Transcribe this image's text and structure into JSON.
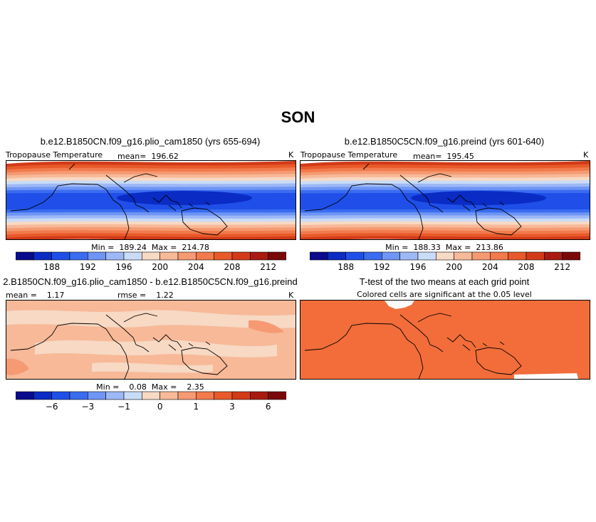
{
  "figure": {
    "title": "SON"
  },
  "colorbar_colors": [
    "#0a0a8c",
    "#0a2bc4",
    "#1f4fe8",
    "#3a6cf0",
    "#6f95f5",
    "#9db8f5",
    "#c9dcf7",
    "#f7d9c4",
    "#f7b998",
    "#f59a72",
    "#f27a4c",
    "#e85a2a",
    "#d33a18",
    "#a81a10",
    "#7a0808"
  ],
  "panels": [
    {
      "title": "b.e12.B1850CN.f09_g16.plio_cam1850 (yrs 655-694)",
      "variable_label": "Tropopause Temperature",
      "mean_label": "mean=  196.62",
      "units": "K",
      "minmax": "Min =  189.24  Max =  214.78",
      "colorbar_ticks": [
        "188",
        "192",
        "196",
        "200",
        "204",
        "208",
        "212"
      ]
    },
    {
      "title": "b.e12.B1850C5CN.f09_g16.preind (yrs 601-640)",
      "variable_label": "Tropopause Temperature",
      "mean_label": "mean=  195.45",
      "units": "K",
      "minmax": "Min =  188.33  Max =  213.86",
      "colorbar_ticks": [
        "188",
        "192",
        "196",
        "200",
        "204",
        "208",
        "212"
      ]
    },
    {
      "title": "2.B1850CN.f09_g16.plio_cam1850 - b.e12.B1850C5CN.f09_g16.preind",
      "mean_label": "mean =    1.17",
      "rmse_label": "rmse =    1.22",
      "units": "K",
      "minmax": "Min =    0.08  Max =    2.35",
      "colorbar_ticks": [
        "−6",
        "−3",
        "−1",
        "0",
        "1",
        "3",
        "6"
      ]
    },
    {
      "title": "T-test of the two means at each grid point",
      "subtitle": "Colored cells are significant at the 0.05 level"
    }
  ],
  "chart_data": [
    {
      "type": "heatmap",
      "title": "b.e12.B1850CN.f09_g16.plio_cam1850 (yrs 655-694)",
      "variable": "Tropopause Temperature",
      "units": "K",
      "mean": 196.62,
      "min": 189.24,
      "max": 214.78,
      "colorbar_levels": [
        186,
        188,
        190,
        192,
        194,
        196,
        198,
        200,
        202,
        204,
        206,
        208,
        210,
        212,
        214
      ],
      "colorbar_ticks": [
        188,
        192,
        196,
        200,
        204,
        208,
        212
      ],
      "pattern": "cold (~189-192 K) tropics, warm (>210 K) high latitudes"
    },
    {
      "type": "heatmap",
      "title": "b.e12.B1850C5CN.f09_g16.preind (yrs 601-640)",
      "variable": "Tropopause Temperature",
      "units": "K",
      "mean": 195.45,
      "min": 188.33,
      "max": 213.86,
      "colorbar_levels": [
        186,
        188,
        190,
        192,
        194,
        196,
        198,
        200,
        202,
        204,
        206,
        208,
        210,
        212,
        214
      ],
      "colorbar_ticks": [
        188,
        192,
        196,
        200,
        204,
        208,
        212
      ]
    },
    {
      "type": "heatmap",
      "title": "2.B1850CN.f09_g16.plio_cam1850 - b.e12.B1850C5CN.f09_g16.preind",
      "units": "K",
      "mean": 1.17,
      "rmse": 1.22,
      "min": 0.08,
      "max": 2.35,
      "colorbar_levels": [
        -8,
        -6,
        -4,
        -3,
        -2,
        -1,
        -0.5,
        0,
        0.5,
        1,
        2,
        3,
        4,
        6,
        8
      ],
      "colorbar_ticks": [
        -6,
        -3,
        -1,
        0,
        1,
        3,
        6
      ]
    },
    {
      "type": "heatmap",
      "title": "T-test of the two means at each grid point",
      "subtitle": "Colored cells are significant at the 0.05 level",
      "significance_level": 0.05
    }
  ]
}
